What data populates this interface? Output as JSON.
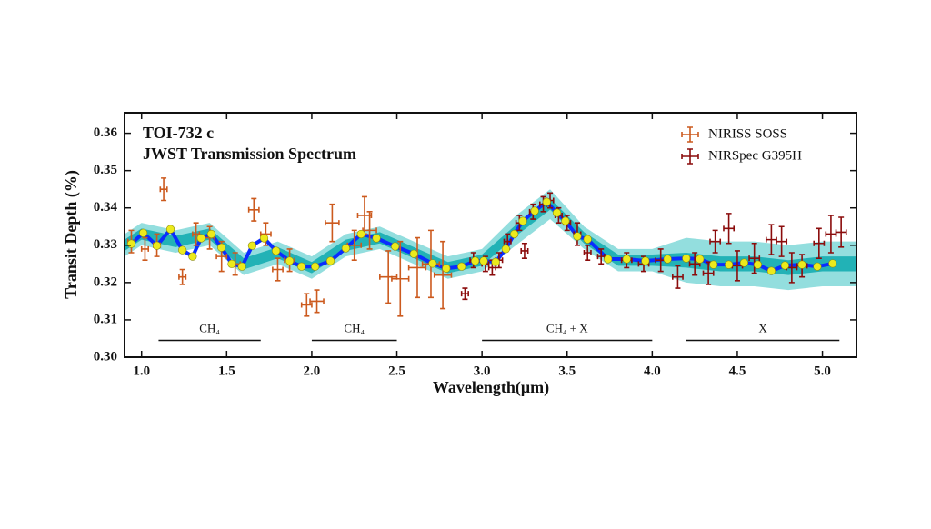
{
  "chart_data": {
    "type": "errorbar",
    "title": "TOI-732 c",
    "subtitle": "JWST Transmission Spectrum",
    "x_label": "Wavelength(μm)",
    "y_label": "Transit Depth (%)",
    "xlim": [
      0.9,
      5.2
    ],
    "ylim": [
      0.3,
      0.3655
    ],
    "xticks": [
      {
        "value": 1.0,
        "label": "1.0"
      },
      1.5,
      {
        "value": 2.0,
        "label": "2.0"
      },
      2.5,
      {
        "value": 3.0,
        "label": "3.0"
      },
      3.5,
      {
        "value": 4.0,
        "label": "4.0"
      },
      4.5,
      {
        "value": 5.0,
        "label": "5.0"
      }
    ],
    "yticks": [
      {
        "value": 0.3,
        "label": "0.30"
      },
      0.31,
      0.32,
      0.33,
      0.34,
      0.35,
      0.36
    ],
    "legend": "upper right",
    "band": {
      "color_outer": "#93dede",
      "color_inner": "#22b2b6",
      "x": [
        0.9,
        1.0,
        1.2,
        1.4,
        1.6,
        1.8,
        2.0,
        2.2,
        2.4,
        2.6,
        2.8,
        3.0,
        3.2,
        3.4,
        3.6,
        3.8,
        4.0,
        4.2,
        4.4,
        4.6,
        4.8,
        5.0,
        5.2
      ],
      "lo1": [
        0.3285,
        0.3315,
        0.3295,
        0.3315,
        0.3235,
        0.3265,
        0.3225,
        0.3285,
        0.3305,
        0.3265,
        0.3225,
        0.3245,
        0.3325,
        0.3395,
        0.3305,
        0.3245,
        0.3245,
        0.324,
        0.323,
        0.323,
        0.322,
        0.323,
        0.323
      ],
      "hi1": [
        0.3315,
        0.3345,
        0.3325,
        0.3345,
        0.3265,
        0.3295,
        0.3255,
        0.3315,
        0.3335,
        0.3295,
        0.3255,
        0.3275,
        0.3355,
        0.3425,
        0.3335,
        0.3275,
        0.3275,
        0.328,
        0.327,
        0.327,
        0.326,
        0.327,
        0.327
      ],
      "lo2": [
        0.327,
        0.33,
        0.328,
        0.33,
        0.322,
        0.325,
        0.321,
        0.327,
        0.329,
        0.325,
        0.321,
        0.323,
        0.33,
        0.337,
        0.329,
        0.323,
        0.323,
        0.32,
        0.319,
        0.319,
        0.318,
        0.319,
        0.319
      ],
      "hi2": [
        0.333,
        0.336,
        0.334,
        0.336,
        0.328,
        0.331,
        0.327,
        0.333,
        0.335,
        0.331,
        0.327,
        0.329,
        0.338,
        0.345,
        0.335,
        0.329,
        0.329,
        0.332,
        0.331,
        0.331,
        0.33,
        0.331,
        0.331
      ]
    },
    "model": {
      "color": "#0a2cff",
      "marker_color": "#ecea1c",
      "x": [
        0.94,
        1.01,
        1.09,
        1.17,
        1.24,
        1.3,
        1.35,
        1.41,
        1.47,
        1.53,
        1.59,
        1.65,
        1.72,
        1.79,
        1.87,
        1.94,
        2.02,
        2.11,
        2.2,
        2.29,
        2.38,
        2.49,
        2.6,
        2.71,
        2.79,
        2.88,
        2.96,
        3.01,
        3.08,
        3.14,
        3.19,
        3.24,
        3.31,
        3.38,
        3.44,
        3.49,
        3.56,
        3.62,
        3.74,
        3.85,
        3.96,
        4.09,
        4.2,
        4.28,
        4.36,
        4.45,
        4.54,
        4.62,
        4.7,
        4.78,
        4.88,
        4.97,
        5.06
      ],
      "y": [
        0.3304,
        0.3333,
        0.3299,
        0.3343,
        0.3287,
        0.327,
        0.3319,
        0.333,
        0.3294,
        0.325,
        0.3243,
        0.3299,
        0.3319,
        0.3285,
        0.3258,
        0.3243,
        0.3243,
        0.3258,
        0.3292,
        0.333,
        0.3319,
        0.3297,
        0.3277,
        0.3251,
        0.3238,
        0.3243,
        0.3258,
        0.3258,
        0.3255,
        0.329,
        0.333,
        0.3365,
        0.3392,
        0.3416,
        0.3387,
        0.3365,
        0.3324,
        0.3316,
        0.3263,
        0.3263,
        0.3258,
        0.3263,
        0.3265,
        0.3263,
        0.3248,
        0.3248,
        0.3253,
        0.3248,
        0.3231,
        0.3246,
        0.3248,
        0.3243,
        0.3251
      ]
    },
    "series": [
      {
        "name": "NIRISS SOSS",
        "color": "#cc5a1e",
        "x": [
          0.94,
          1.02,
          1.09,
          1.13,
          1.24,
          1.32,
          1.4,
          1.47,
          1.55,
          1.66,
          1.73,
          1.8,
          1.87,
          1.97,
          2.03,
          2.12,
          2.25,
          2.31,
          2.34,
          2.45,
          2.52,
          2.62,
          2.7,
          2.77
        ],
        "values": [
          0.331,
          0.329,
          0.33,
          0.345,
          0.3215,
          0.333,
          0.332,
          0.327,
          0.325,
          0.3395,
          0.333,
          0.3235,
          0.326,
          0.314,
          0.315,
          0.336,
          0.33,
          0.338,
          0.334,
          0.3215,
          0.321,
          0.324,
          0.325,
          0.322
        ],
        "xerr": [
          0.02,
          0.02,
          0.02,
          0.02,
          0.02,
          0.02,
          0.03,
          0.03,
          0.03,
          0.03,
          0.03,
          0.03,
          0.03,
          0.03,
          0.04,
          0.04,
          0.04,
          0.04,
          0.04,
          0.05,
          0.05,
          0.05,
          0.05,
          0.05
        ],
        "yerr": [
          0.003,
          0.003,
          0.003,
          0.003,
          0.002,
          0.003,
          0.003,
          0.004,
          0.003,
          0.003,
          0.003,
          0.003,
          0.003,
          0.003,
          0.003,
          0.005,
          0.004,
          0.005,
          0.005,
          0.007,
          0.01,
          0.008,
          0.009,
          0.009
        ]
      },
      {
        "name": "NIRSpec G395H",
        "color": "#8b0c0c",
        "x": [
          2.9,
          2.95,
          3.02,
          3.06,
          3.1,
          3.15,
          3.22,
          3.25,
          3.3,
          3.36,
          3.4,
          3.45,
          3.5,
          3.56,
          3.62,
          3.7,
          3.85,
          3.95,
          4.05,
          4.15,
          4.25,
          4.33,
          4.37,
          4.45,
          4.5,
          4.6,
          4.7,
          4.76,
          4.82,
          4.88,
          4.98,
          5.05,
          5.11
        ],
        "values": [
          0.317,
          0.326,
          0.325,
          0.324,
          0.326,
          0.331,
          0.336,
          0.3285,
          0.339,
          0.341,
          0.342,
          0.338,
          0.336,
          0.333,
          0.328,
          0.327,
          0.326,
          0.325,
          0.326,
          0.3215,
          0.325,
          0.3225,
          0.331,
          0.3345,
          0.3245,
          0.3265,
          0.3315,
          0.331,
          0.324,
          0.3245,
          0.3305,
          0.333,
          0.3335
        ],
        "xerr": [
          0.02,
          0.02,
          0.02,
          0.02,
          0.02,
          0.02,
          0.02,
          0.02,
          0.02,
          0.02,
          0.02,
          0.02,
          0.02,
          0.02,
          0.02,
          0.02,
          0.03,
          0.03,
          0.03,
          0.03,
          0.03,
          0.03,
          0.03,
          0.03,
          0.03,
          0.03,
          0.03,
          0.03,
          0.03,
          0.03,
          0.03,
          0.03,
          0.03
        ],
        "yerr": [
          0.0015,
          0.002,
          0.002,
          0.002,
          0.002,
          0.002,
          0.002,
          0.002,
          0.002,
          0.002,
          0.002,
          0.002,
          0.002,
          0.003,
          0.002,
          0.002,
          0.002,
          0.002,
          0.003,
          0.003,
          0.003,
          0.003,
          0.003,
          0.004,
          0.004,
          0.004,
          0.004,
          0.004,
          0.004,
          0.003,
          0.004,
          0.005,
          0.004
        ]
      }
    ],
    "annotations": [
      {
        "text": "CH₄",
        "x": [
          1.1,
          1.7
        ],
        "y": 0.3045
      },
      {
        "text": "CH₄",
        "x": [
          2.0,
          2.5
        ],
        "y": 0.3045
      },
      {
        "text": "CH₄ + X",
        "x": [
          3.0,
          4.0
        ],
        "y": 0.3045
      },
      {
        "text": "X",
        "x": [
          4.2,
          5.1
        ],
        "y": 0.3045
      }
    ]
  }
}
